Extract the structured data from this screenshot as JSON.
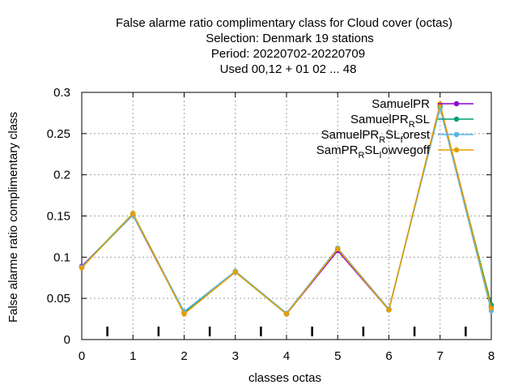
{
  "chart_data": {
    "type": "line",
    "title_lines": [
      "False alarme ratio complimentary class  for Cloud cover (octas)",
      "Selection: Denmark     19 stations",
      "Period: 20220702-20220709",
      "Used  00,12  + 01 02 ... 48"
    ],
    "xlabel": "classes octas",
    "ylabel": "False alarme ratio complimentary class",
    "xlim": [
      0,
      8
    ],
    "ylim": [
      0,
      0.3
    ],
    "x_ticks": [
      "0",
      "1",
      "2",
      "3",
      "4",
      "5",
      "6",
      "7",
      "8"
    ],
    "y_ticks": [
      "0",
      "0.05",
      "0.1",
      "0.15",
      "0.2",
      "0.25",
      "0.3"
    ],
    "grid": true,
    "legend_position": "top-right",
    "x": [
      0,
      1,
      2,
      3,
      4,
      5,
      6,
      7,
      8
    ],
    "series": [
      {
        "name": "SamuelPR",
        "label_main": "SamuelPR",
        "label_sub": "",
        "label_tail": "",
        "color": "#9400d3",
        "values": [
          0.089,
          0.151,
          0.032,
          0.082,
          0.031,
          0.108,
          0.036,
          0.285,
          0.04
        ]
      },
      {
        "name": "SamuelPR_R SL",
        "label_main": "SamuelPR",
        "label_sub": "R",
        "label_tail": "SL",
        "color": "#009e73",
        "values": [
          0.088,
          0.153,
          0.033,
          0.082,
          0.031,
          0.11,
          0.036,
          0.283,
          0.042
        ]
      },
      {
        "name": "SamuelPR_R SL_f orest",
        "label_main": "SamuelPR",
        "label_sub": "R",
        "label_tail": "SL",
        "label_sub2": "f",
        "label_tail2": "orest",
        "color": "#56b4e9",
        "values": [
          0.088,
          0.151,
          0.034,
          0.083,
          0.032,
          0.111,
          0.037,
          0.281,
          0.035
        ]
      },
      {
        "name": "SamPR_R SL_l owvegoff",
        "label_main": "SamPR",
        "label_sub": "R",
        "label_tail": "SL",
        "label_sub2": "l",
        "label_tail2": "owvegoff",
        "color": "#e69f00",
        "values": [
          0.087,
          0.153,
          0.031,
          0.082,
          0.031,
          0.11,
          0.036,
          0.286,
          0.038
        ]
      }
    ]
  }
}
